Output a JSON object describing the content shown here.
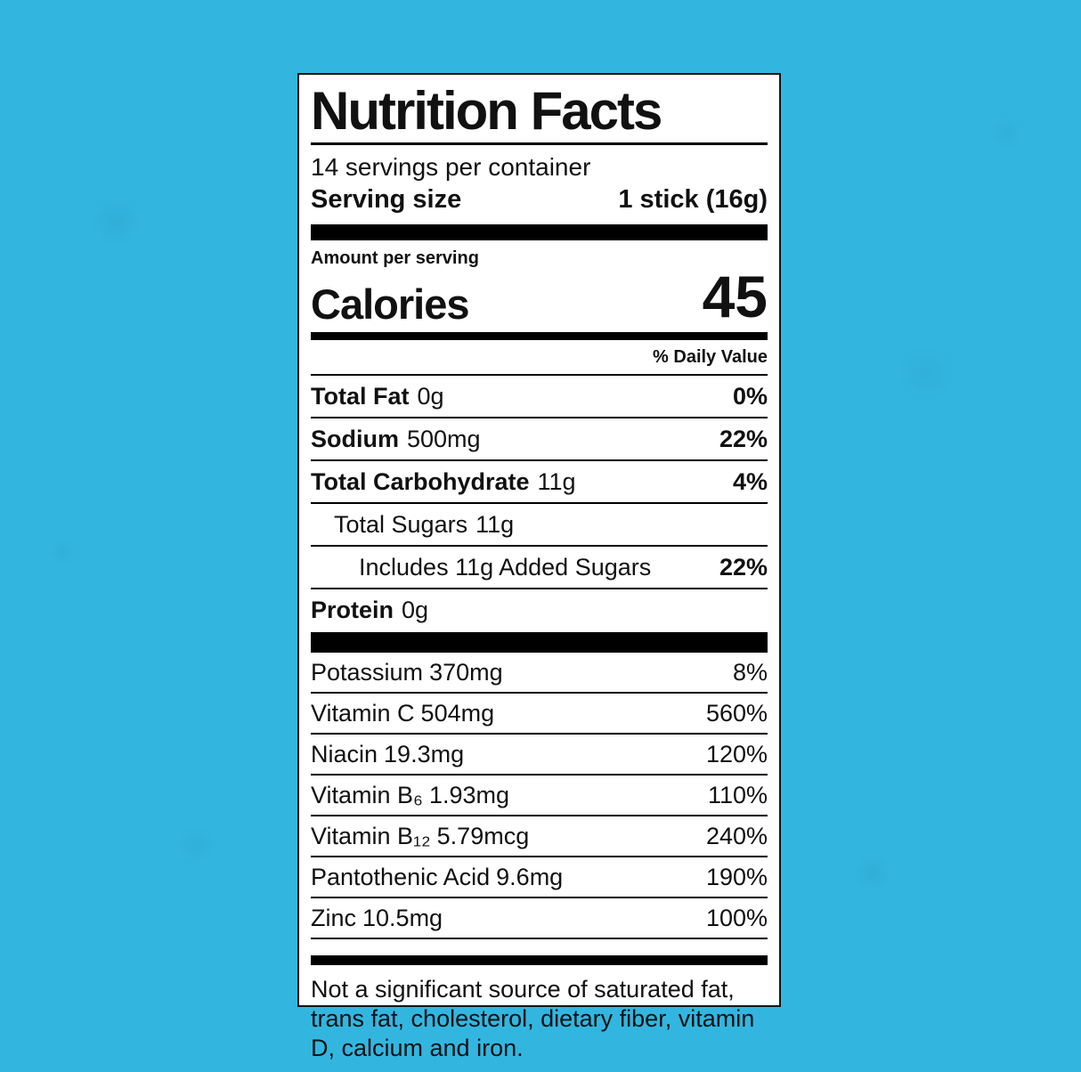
{
  "colors": {
    "background": "#32b6e0",
    "label_background": "#ffffff",
    "label_border": "#141414",
    "text": "#111111",
    "bars": "#000000"
  },
  "label": {
    "title": "Nutrition Facts",
    "servings_per_container": "14 servings per container",
    "serving_size_label": "Serving size",
    "serving_size_value": "1 stick (16g)",
    "amount_per_serving": "Amount per serving",
    "calories_label": "Calories",
    "calories_value": "45",
    "daily_value_header": "% Daily Value",
    "nutrients": [
      {
        "name": "Total Fat",
        "amount": "0g",
        "dv": "0%"
      },
      {
        "name": "Sodium",
        "amount": "500mg",
        "dv": "22%"
      },
      {
        "name": "Total Carbohydrate",
        "amount": "11g",
        "dv": "4%"
      },
      {
        "name": "Total Sugars",
        "amount": "11g",
        "dv": ""
      },
      {
        "name": "Includes 11g Added Sugars",
        "amount": "",
        "dv": "22%"
      },
      {
        "name": "Protein",
        "amount": "0g",
        "dv": ""
      }
    ],
    "vitamins": [
      {
        "name": "Potassium",
        "amount": "370mg",
        "dv": "8%"
      },
      {
        "name": "Vitamin C",
        "amount": "504mg",
        "dv": "560%"
      },
      {
        "name": "Niacin",
        "amount": "19.3mg",
        "dv": "120%"
      },
      {
        "name": "Vitamin B₆",
        "amount": "1.93mg",
        "dv": "110%"
      },
      {
        "name": "Vitamin B₁₂",
        "amount": "5.79mcg",
        "dv": "240%"
      },
      {
        "name": "Pantothenic Acid",
        "amount": "9.6mg",
        "dv": "190%"
      },
      {
        "name": "Zinc",
        "amount": "10.5mg",
        "dv": "100%"
      }
    ],
    "footnote": "Not a significant source of saturated fat, trans fat, cholesterol, dietary fiber, vitamin D, calcium and iron."
  }
}
